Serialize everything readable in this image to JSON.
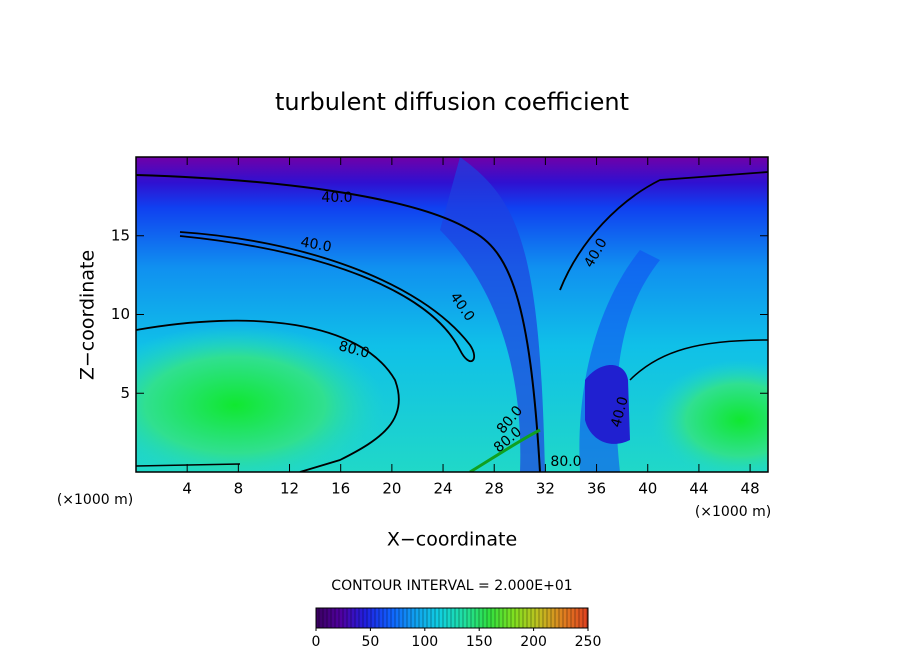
{
  "chart_data": {
    "type": "contour",
    "title": "turbulent diffusion coefficient",
    "x_label": "X−coordinate",
    "y_label": "Z−coordinate",
    "x_unit": "(×1000 m)",
    "x_unit_right": "(×1000 m)",
    "xlim": [
      0,
      49.4
    ],
    "ylim": [
      0,
      20
    ],
    "xticks": [
      4,
      8,
      12,
      16,
      20,
      24,
      28,
      32,
      36,
      40,
      44,
      48
    ],
    "yticks": [
      5,
      10,
      15
    ],
    "contour_interval": "CONTOUR INTERVAL = 2.000E+01",
    "contour_labels": [
      "40.0",
      "40.0",
      "40.0",
      "40.0",
      "40.0",
      "80.0",
      "80.0",
      "80.0",
      "80.0"
    ],
    "colorbar": {
      "lim": [
        0,
        250
      ],
      "ticks": [
        0,
        50,
        100,
        150,
        200,
        250
      ],
      "colors": [
        "#3a0060",
        "#5000a0",
        "#2020e0",
        "#1060ff",
        "#10a0f0",
        "#10d0e0",
        "#20e0a0",
        "#30e040",
        "#80e020",
        "#c0c020",
        "#e08020",
        "#e04020"
      ]
    }
  }
}
